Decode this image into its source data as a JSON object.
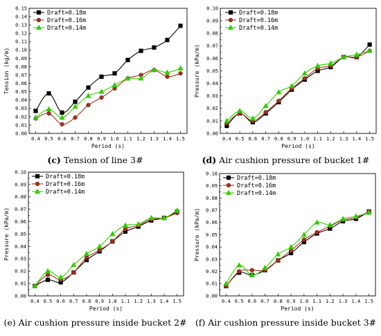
{
  "figure": {
    "panels": [
      {
        "caption_letter": "(c)",
        "caption_text": "Tension of line 3#"
      },
      {
        "caption_letter": "(d)",
        "caption_text": "Air cushion pressure of bucket 1#"
      },
      {
        "caption_letter": "(e)",
        "caption_text": "Air cushion pressure inside bucket 2#"
      },
      {
        "caption_letter": "(f)",
        "caption_text": "Air cushion pressure inside bucket 3#"
      }
    ]
  },
  "chart_data": [
    {
      "type": "line",
      "xlabel": "Period (s)",
      "ylabel": "Tension (kg/m)",
      "xlim": [
        0.35,
        1.55
      ],
      "ylim": [
        0,
        0.15
      ],
      "xticks": [
        0.4,
        0.5,
        0.6,
        0.7,
        0.8,
        0.9,
        1.0,
        1.1,
        1.2,
        1.3,
        1.4,
        1.5
      ],
      "yticks": [
        0.0,
        0.01,
        0.02,
        0.03,
        0.04,
        0.05,
        0.06,
        0.07,
        0.08,
        0.09,
        0.1,
        0.11,
        0.12,
        0.13,
        0.14,
        0.15
      ],
      "ytick_labels": [
        "0.00",
        "0.01",
        "0.02",
        "0.03",
        "0.04",
        "0.05",
        "0.06",
        "0.07",
        "0.08",
        "0.09",
        "0.10",
        "0.11",
        "0.12",
        "0.13",
        "0.14",
        "0.15"
      ],
      "legend_position": "top-left",
      "x": [
        0.4,
        0.5,
        0.6,
        0.7,
        0.8,
        0.9,
        1.0,
        1.1,
        1.2,
        1.3,
        1.4,
        1.5
      ],
      "series": [
        {
          "name": "Draft=0.18m",
          "color": "#000000",
          "marker": "square",
          "values": [
            0.027,
            0.048,
            0.025,
            0.038,
            0.055,
            0.068,
            0.072,
            0.088,
            0.099,
            0.103,
            0.112,
            0.129
          ]
        },
        {
          "name": "Draft=0.16m",
          "color": "#a0321e",
          "marker": "circle",
          "values": [
            0.018,
            0.024,
            0.011,
            0.019,
            0.034,
            0.043,
            0.054,
            0.066,
            0.07,
            0.076,
            0.068,
            0.072
          ]
        },
        {
          "name": "Draft=0.14m",
          "color": "#33cc00",
          "marker": "triangle",
          "values": [
            0.019,
            0.029,
            0.019,
            0.032,
            0.045,
            0.05,
            0.058,
            0.066,
            0.066,
            0.076,
            0.073,
            0.078
          ]
        }
      ]
    },
    {
      "type": "line",
      "xlabel": "Period (s)",
      "ylabel": "Pressure (kPa/m)",
      "xlim": [
        0.35,
        1.55
      ],
      "ylim": [
        0,
        0.1
      ],
      "xticks": [
        0.4,
        0.5,
        0.6,
        0.7,
        0.8,
        0.9,
        1.0,
        1.1,
        1.2,
        1.3,
        1.4,
        1.5
      ],
      "yticks": [
        0.0,
        0.005,
        0.01,
        0.015,
        0.02,
        0.025,
        0.03,
        0.035,
        0.04,
        0.045,
        0.05,
        0.055,
        0.06,
        0.065,
        0.07,
        0.075,
        0.08,
        0.085,
        0.09,
        0.095,
        0.1
      ],
      "ytick_labels": [
        "0.00",
        "",
        "0.01",
        "",
        "0.02",
        "",
        "0.03",
        "",
        "0.04",
        "",
        "0.05",
        "",
        "0.06",
        "",
        "0.07",
        "",
        "0.08",
        "",
        "0.09",
        "",
        "0.10"
      ],
      "legend_position": "top-left",
      "x": [
        0.4,
        0.5,
        0.6,
        0.7,
        0.8,
        0.9,
        1.0,
        1.1,
        1.2,
        1.3,
        1.4,
        1.5
      ],
      "series": [
        {
          "name": "Draft=0.18m",
          "color": "#000000",
          "marker": "square",
          "values": [
            0.006,
            0.016,
            0.009,
            0.016,
            0.025,
            0.035,
            0.043,
            0.05,
            0.053,
            0.061,
            0.061,
            0.071
          ]
        },
        {
          "name": "Draft=0.16m",
          "color": "#a0321e",
          "marker": "circle",
          "values": [
            0.008,
            0.016,
            0.01,
            0.017,
            0.026,
            0.036,
            0.044,
            0.052,
            0.054,
            0.061,
            0.061,
            0.066
          ]
        },
        {
          "name": "Draft=0.14m",
          "color": "#33cc00",
          "marker": "triangle",
          "values": [
            0.01,
            0.018,
            0.012,
            0.022,
            0.033,
            0.038,
            0.048,
            0.054,
            0.056,
            0.061,
            0.063,
            0.066
          ]
        }
      ]
    },
    {
      "type": "line",
      "xlabel": "Period (s)",
      "ylabel": "Pressure (kPa/m)",
      "xlim": [
        0.35,
        1.55
      ],
      "ylim": [
        0,
        0.1
      ],
      "xticks": [
        0.4,
        0.5,
        0.6,
        0.7,
        0.8,
        0.9,
        1.0,
        1.1,
        1.2,
        1.3,
        1.4,
        1.5
      ],
      "yticks": [
        0.0,
        0.005,
        0.01,
        0.015,
        0.02,
        0.025,
        0.03,
        0.035,
        0.04,
        0.045,
        0.05,
        0.055,
        0.06,
        0.065,
        0.07,
        0.075,
        0.08,
        0.085,
        0.09,
        0.095,
        0.1
      ],
      "ytick_labels": [
        "0.00",
        "",
        "0.01",
        "",
        "0.02",
        "",
        "0.03",
        "",
        "0.04",
        "",
        "0.05",
        "",
        "0.06",
        "",
        "0.07",
        "",
        "0.08",
        "",
        "0.09",
        "",
        "0.10"
      ],
      "legend_position": "top-left",
      "x": [
        0.4,
        0.5,
        0.6,
        0.7,
        0.8,
        0.9,
        1.0,
        1.1,
        1.2,
        1.3,
        1.4,
        1.5
      ],
      "series": [
        {
          "name": "Draft=0.18m",
          "color": "#000000",
          "marker": "square",
          "values": [
            0.008,
            0.013,
            0.011,
            0.019,
            0.029,
            0.036,
            0.044,
            0.052,
            0.056,
            0.061,
            0.063,
            0.068
          ]
        },
        {
          "name": "Draft=0.16m",
          "color": "#a0321e",
          "marker": "circle",
          "values": [
            0.008,
            0.017,
            0.013,
            0.019,
            0.031,
            0.037,
            0.044,
            0.054,
            0.057,
            0.062,
            0.063,
            0.067
          ]
        },
        {
          "name": "Draft=0.14m",
          "color": "#33cc00",
          "marker": "triangle",
          "values": [
            0.008,
            0.02,
            0.015,
            0.025,
            0.034,
            0.04,
            0.05,
            0.057,
            0.058,
            0.063,
            0.063,
            0.069
          ]
        }
      ]
    },
    {
      "type": "line",
      "xlabel": "Period (s)",
      "ylabel": "Pressure (kPa/m)",
      "xlim": [
        0.35,
        1.55
      ],
      "ylim": [
        0,
        0.1
      ],
      "xticks": [
        0.4,
        0.5,
        0.6,
        0.7,
        0.8,
        0.9,
        1.0,
        1.1,
        1.2,
        1.3,
        1.4,
        1.5
      ],
      "yticks": [
        0.0,
        0.005,
        0.01,
        0.015,
        0.02,
        0.025,
        0.03,
        0.035,
        0.04,
        0.045,
        0.05,
        0.055,
        0.06,
        0.065,
        0.07,
        0.075,
        0.08,
        0.085,
        0.09,
        0.095,
        0.1
      ],
      "ytick_labels": [
        "0.00",
        "",
        "0.01",
        "",
        "0.02",
        "",
        "0.03",
        "",
        "0.04",
        "",
        "0.05",
        "",
        "0.06",
        "",
        "0.07",
        "",
        "0.08",
        "",
        "0.09",
        "",
        "0.10"
      ],
      "legend_position": "top-left",
      "x": [
        0.4,
        0.5,
        0.6,
        0.7,
        0.8,
        0.9,
        1.0,
        1.1,
        1.2,
        1.3,
        1.4,
        1.5
      ],
      "series": [
        {
          "name": "Draft=0.18m",
          "color": "#000000",
          "marker": "square",
          "values": [
            0.008,
            0.019,
            0.017,
            0.021,
            0.029,
            0.035,
            0.044,
            0.051,
            0.055,
            0.061,
            0.063,
            0.069
          ]
        },
        {
          "name": "Draft=0.16m",
          "color": "#a0321e",
          "marker": "circle",
          "values": [
            0.008,
            0.02,
            0.021,
            0.021,
            0.029,
            0.037,
            0.046,
            0.052,
            0.057,
            0.062,
            0.064,
            0.069
          ]
        },
        {
          "name": "Draft=0.14m",
          "color": "#33cc00",
          "marker": "triangle",
          "values": [
            0.01,
            0.025,
            0.017,
            0.023,
            0.034,
            0.04,
            0.05,
            0.06,
            0.058,
            0.063,
            0.065,
            0.068
          ]
        }
      ]
    }
  ]
}
